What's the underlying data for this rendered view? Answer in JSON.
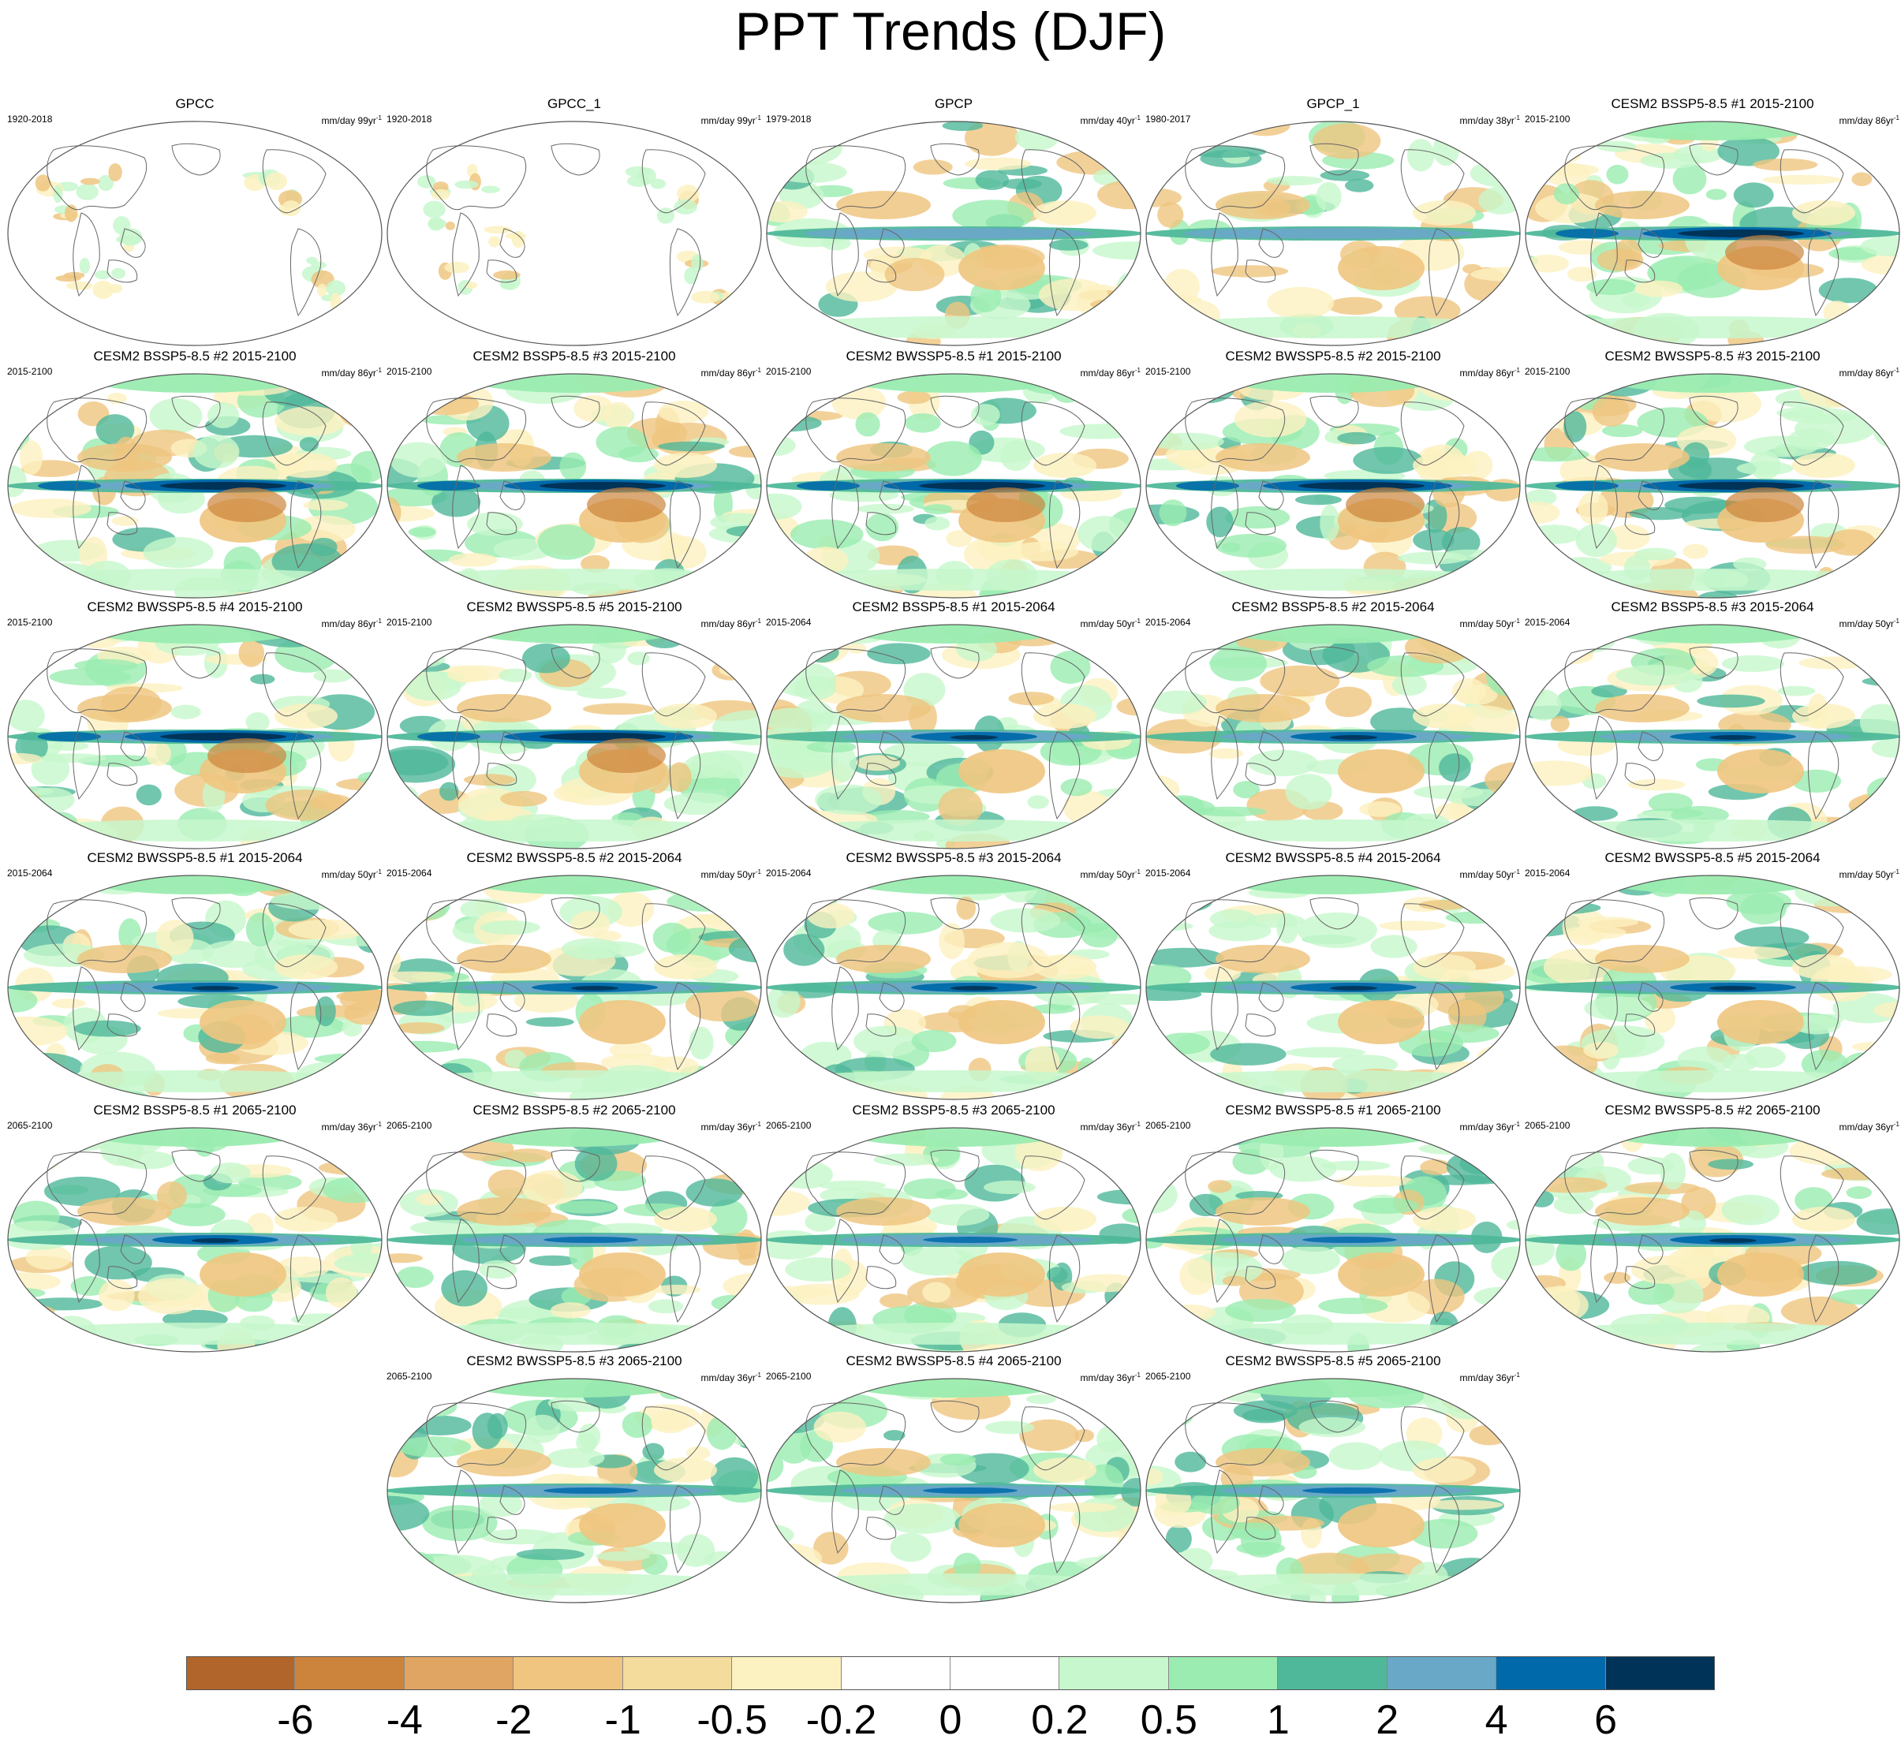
{
  "title": "PPT Trends (DJF)",
  "panels": [
    {
      "title": "GPCC",
      "years": "1920-2018",
      "units": "mm/day 99yr",
      "units_sup": "-1",
      "style": "land"
    },
    {
      "title": "GPCC_1",
      "years": "1920-2018",
      "units": "mm/day 99yr",
      "units_sup": "-1",
      "style": "land"
    },
    {
      "title": "GPCP",
      "years": "1979-2018",
      "units": "mm/day 40yr",
      "units_sup": "-1",
      "style": "obs"
    },
    {
      "title": "GPCP_1",
      "years": "1980-2017",
      "units": "mm/day 38yr",
      "units_sup": "-1",
      "style": "obs"
    },
    {
      "title": "CESM2 BSSP5-8.5 #1 2015-2100",
      "years": "2015-2100",
      "units": "mm/day 86yr",
      "units_sup": "-1",
      "style": "strong"
    },
    {
      "title": "CESM2 BSSP5-8.5 #2 2015-2100",
      "years": "2015-2100",
      "units": "mm/day 86yr",
      "units_sup": "-1",
      "style": "strong"
    },
    {
      "title": "CESM2 BSSP5-8.5 #3 2015-2100",
      "years": "2015-2100",
      "units": "mm/day 86yr",
      "units_sup": "-1",
      "style": "strong"
    },
    {
      "title": "CESM2 BWSSP5-8.5 #1 2015-2100",
      "years": "2015-2100",
      "units": "mm/day 86yr",
      "units_sup": "-1",
      "style": "strong"
    },
    {
      "title": "CESM2 BWSSP5-8.5 #2 2015-2100",
      "years": "2015-2100",
      "units": "mm/day 86yr",
      "units_sup": "-1",
      "style": "strong"
    },
    {
      "title": "CESM2 BWSSP5-8.5 #3 2015-2100",
      "years": "2015-2100",
      "units": "mm/day 86yr",
      "units_sup": "-1",
      "style": "strong"
    },
    {
      "title": "CESM2 BWSSP5-8.5 #4 2015-2100",
      "years": "2015-2100",
      "units": "mm/day 86yr",
      "units_sup": "-1",
      "style": "strong"
    },
    {
      "title": "CESM2 BWSSP5-8.5 #5 2015-2100",
      "years": "2015-2100",
      "units": "mm/day 86yr",
      "units_sup": "-1",
      "style": "strong"
    },
    {
      "title": "CESM2 BSSP5-8.5 #1 2015-2064",
      "years": "2015-2064",
      "units": "mm/day 50yr",
      "units_sup": "-1",
      "style": "medium"
    },
    {
      "title": "CESM2 BSSP5-8.5 #2 2015-2064",
      "years": "2015-2064",
      "units": "mm/day 50yr",
      "units_sup": "-1",
      "style": "medium"
    },
    {
      "title": "CESM2 BSSP5-8.5 #3 2015-2064",
      "years": "2015-2064",
      "units": "mm/day 50yr",
      "units_sup": "-1",
      "style": "medium"
    },
    {
      "title": "CESM2 BWSSP5-8.5 #1 2015-2064",
      "years": "2015-2064",
      "units": "mm/day 50yr",
      "units_sup": "-1",
      "style": "medium"
    },
    {
      "title": "CESM2 BWSSP5-8.5 #2 2015-2064",
      "years": "2015-2064",
      "units": "mm/day 50yr",
      "units_sup": "-1",
      "style": "medium"
    },
    {
      "title": "CESM2 BWSSP5-8.5 #3 2015-2064",
      "years": "2015-2064",
      "units": "mm/day 50yr",
      "units_sup": "-1",
      "style": "medium"
    },
    {
      "title": "CESM2 BWSSP5-8.5 #4 2015-2064",
      "years": "2015-2064",
      "units": "mm/day 50yr",
      "units_sup": "-1",
      "style": "medium"
    },
    {
      "title": "CESM2 BWSSP5-8.5 #5 2015-2064",
      "years": "2015-2064",
      "units": "mm/day 50yr",
      "units_sup": "-1",
      "style": "medium"
    },
    {
      "title": "CESM2 BSSP5-8.5 #1 2065-2100",
      "years": "2065-2100",
      "units": "mm/day 36yr",
      "units_sup": "-1",
      "style": "medium"
    },
    {
      "title": "CESM2 BSSP5-8.5 #2 2065-2100",
      "years": "2065-2100",
      "units": "mm/day 36yr",
      "units_sup": "-1",
      "style": "weak"
    },
    {
      "title": "CESM2 BSSP5-8.5 #3 2065-2100",
      "years": "2065-2100",
      "units": "mm/day 36yr",
      "units_sup": "-1",
      "style": "weak"
    },
    {
      "title": "CESM2 BWSSP5-8.5 #1 2065-2100",
      "years": "2065-2100",
      "units": "mm/day 36yr",
      "units_sup": "-1",
      "style": "weak"
    },
    {
      "title": "CESM2 BWSSP5-8.5 #2 2065-2100",
      "years": "2065-2100",
      "units": "mm/day 36yr",
      "units_sup": "-1",
      "style": "medium"
    },
    {
      "title": "CESM2 BWSSP5-8.5 #3 2065-2100",
      "years": "2065-2100",
      "units": "mm/day 36yr",
      "units_sup": "-1",
      "style": "weak"
    },
    {
      "title": "CESM2 BWSSP5-8.5 #4 2065-2100",
      "years": "2065-2100",
      "units": "mm/day 36yr",
      "units_sup": "-1",
      "style": "weak"
    },
    {
      "title": "CESM2 BWSSP5-8.5 #5 2065-2100",
      "years": "2065-2100",
      "units": "mm/day 36yr",
      "units_sup": "-1",
      "style": "weak"
    }
  ],
  "colorbar": {
    "colors": [
      "#b2652a",
      "#cc843c",
      "#e0a563",
      "#efc580",
      "#f3dc9c",
      "#fcf1c0",
      "#ffffff",
      "#ffffff",
      "#c7f7cc",
      "#9aecb0",
      "#4fb89a",
      "#6aa8c8",
      "#0069aa",
      "#003358"
    ],
    "labels": [
      "-6",
      "-4",
      "-2",
      "-1",
      "-0.5",
      "-0.2",
      "0",
      "0.2",
      "0.5",
      "1",
      "2",
      "4",
      "6"
    ]
  }
}
